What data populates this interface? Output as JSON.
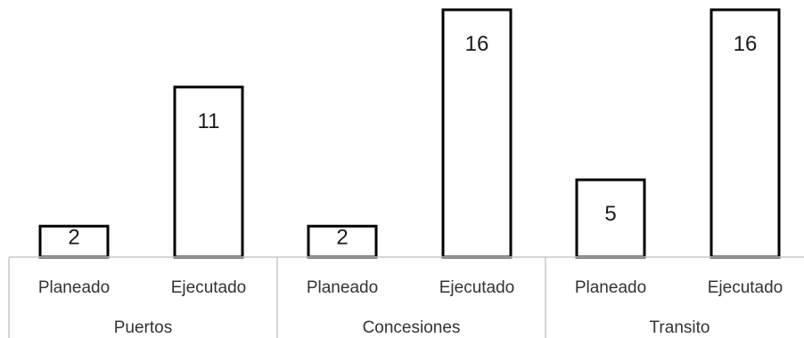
{
  "chart_data": {
    "type": "bar",
    "groups": [
      {
        "name": "Puertos",
        "categories": [
          "Planeado",
          "Ejecutado"
        ],
        "values": [
          2,
          11
        ]
      },
      {
        "name": "Concesiones",
        "categories": [
          "Planeado",
          "Ejecutado"
        ],
        "values": [
          2,
          16
        ]
      },
      {
        "name": "Transito",
        "categories": [
          "Planeado",
          "Ejecutado"
        ],
        "values": [
          5,
          16
        ]
      }
    ],
    "ylim": [
      0,
      16
    ],
    "grid": false,
    "legend": "none",
    "bar_color": "#ffffff",
    "bar_outline_color": "#000000",
    "axis_color": "#c8c8c8"
  }
}
